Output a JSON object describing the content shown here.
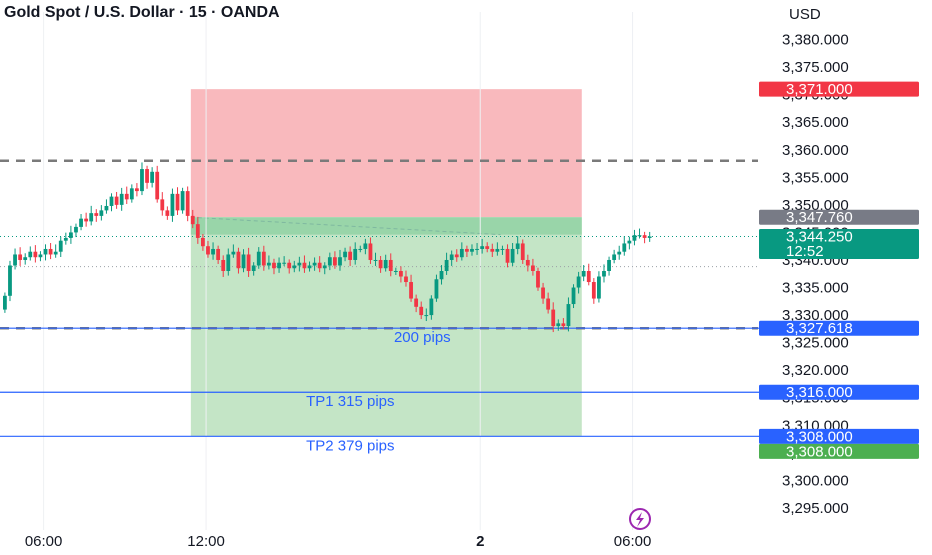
{
  "header": {
    "title": "Gold Spot / U.S. Dollar · 15 · OANDA",
    "currency": "USD"
  },
  "colors": {
    "up": "#089981",
    "down": "#f23645",
    "stop_zone": "#f9b9bd",
    "target_zone": "#c4e5c6",
    "entry_band": "#8ed1a1",
    "blue_line": "#2962ff",
    "gray_badge": "#787b86"
  },
  "chart_data": {
    "type": "candlestick",
    "title": "Gold Spot / U.S. Dollar · 15 · OANDA",
    "ylabel": "USD",
    "ylim": [
      3291,
      3385
    ],
    "y_ticks": [
      "3,295.000",
      "3,300.000",
      "3,305.000",
      "3,310.000",
      "3,315.000",
      "3,320.000",
      "3,325.000",
      "3,330.000",
      "3,335.000",
      "3,340.000",
      "3,345.000",
      "3,350.000",
      "3,355.000",
      "3,360.000",
      "3,365.000",
      "3,370.000",
      "3,375.000",
      "3,380.000"
    ],
    "x_ticks": [
      "06:00",
      "12:00",
      "2",
      "06:00"
    ],
    "candle_count": 128,
    "x_tick_candle_index": [
      8,
      40,
      94,
      124
    ],
    "closes": [
      3333.5,
      3339,
      3341,
      3340,
      3340.5,
      3341.5,
      3340.5,
      3341,
      3342,
      3341,
      3341.5,
      3343.5,
      3344,
      3345,
      3346,
      3347.5,
      3347,
      3348.5,
      3348,
      3349,
      3349.8,
      3351.5,
      3350,
      3352,
      3351,
      3353,
      3352.5,
      3356.5,
      3354,
      3356,
      3351,
      3349,
      3348,
      3352,
      3349,
      3352.5,
      3348,
      3346.5,
      3344,
      3342.5,
      3341,
      3342,
      3340,
      3338,
      3341,
      3341.5,
      3338.5,
      3341,
      3338,
      3339,
      3341.5,
      3339,
      3339.5,
      3338.5,
      3339.5,
      3339.5,
      3338.5,
      3339,
      3339.5,
      3338.5,
      3339,
      3339.5,
      3338.5,
      3339,
      3340.5,
      3339,
      3340.5,
      3341.5,
      3340,
      3342,
      3342,
      3343,
      3340,
      3340,
      3338.5,
      3340,
      3338,
      3338,
      3337,
      3336,
      3333,
      3331.5,
      3330,
      3330,
      3333,
      3336.5,
      3338,
      3340,
      3341,
      3340.5,
      3342,
      3341.5,
      3342,
      3342,
      3342.5,
      3342,
      3341.5,
      3342,
      3342,
      3339.5,
      3342,
      3343,
      3340,
      3339,
      3338,
      3335,
      3333,
      3331,
      3328,
      3328.5,
      3328,
      3332,
      3335,
      3337,
      3338,
      3336,
      3333,
      3337,
      3338,
      3340,
      3341,
      3341.5,
      3343,
      3343.5,
      3344.5,
      3344.5,
      3344,
      3344.25
    ],
    "opens_first": 3331,
    "price_levels": {
      "current": 3344.25,
      "stop": 3371.0,
      "entry": 3347.76,
      "tp_200": 3327.618,
      "tp1": 3316.0,
      "tp2": 3308.0
    },
    "dashed_levels": [
      3358,
      3327.6
    ],
    "dotted_levels": [
      3344.25,
      3338.8
    ],
    "zones": {
      "start_candle": 37,
      "end_candle": 114,
      "stop_top": 3371.0,
      "entry": 3347.76,
      "entry_band_bottom": 3344.6,
      "target_bottom": 3308.0
    },
    "entry_tip_candle": 98,
    "annotations": [
      {
        "label": "200 pips",
        "price": 3327.618
      },
      {
        "label": "TP1   315 pips",
        "price": 3316.0
      },
      {
        "label": "TP2  379 pips",
        "price": 3308.0
      }
    ],
    "badges": [
      {
        "text": "3,371.000",
        "price": 3371.0,
        "color": "#f23645"
      },
      {
        "text": "3,347.760",
        "price": 3347.76,
        "color": "#787b86"
      },
      {
        "text": "3,344.250",
        "subtext": "12:52",
        "price": 3344.25,
        "color": "#089981"
      },
      {
        "text": "3,327.618",
        "price": 3327.618,
        "color": "#2962ff"
      },
      {
        "text": "3,316.000",
        "price": 3316.0,
        "color": "#2962ff"
      },
      {
        "text": "3,308.000",
        "price": 3308.0,
        "color": "#2962ff"
      },
      {
        "text": "3,308.000",
        "price": 3308.0,
        "color": "#4caf50"
      }
    ]
  },
  "lightning_icon": "lightning-icon"
}
